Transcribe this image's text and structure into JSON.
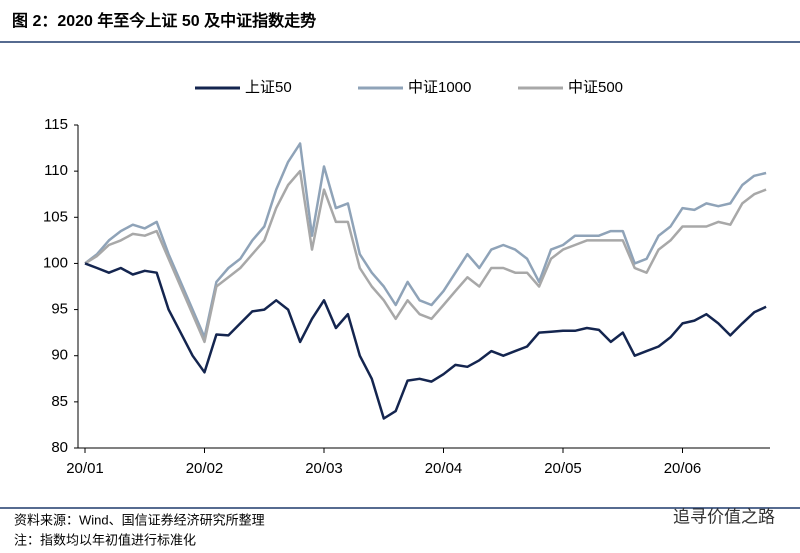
{
  "chart_data": {
    "type": "line",
    "title": "图 2：2020 年至今上证 50 及中证指数走势",
    "source": "资料来源：Wind、国信证券经济研究所整理",
    "note": "注：指数均以年初值进行标准化",
    "watermark": "追寻价值之路",
    "categories": [
      "20/01",
      null,
      null,
      null,
      null,
      null,
      null,
      null,
      null,
      null,
      "20/02",
      null,
      null,
      null,
      null,
      null,
      null,
      null,
      null,
      null,
      "20/03",
      null,
      null,
      null,
      null,
      null,
      null,
      null,
      null,
      null,
      "20/04",
      null,
      null,
      null,
      null,
      null,
      null,
      null,
      null,
      null,
      "20/05",
      null,
      null,
      null,
      null,
      null,
      null,
      null,
      null,
      null,
      "20/06",
      null,
      null,
      null,
      null,
      null,
      null,
      null
    ],
    "series": [
      {
        "name": "上证50",
        "color": "#14254f",
        "values": [
          100,
          99.5,
          99,
          99.5,
          98.8,
          99.2,
          99,
          95,
          92.5,
          90,
          88.2,
          92.3,
          92.2,
          93.5,
          94.8,
          95,
          96,
          95,
          91.5,
          94,
          96,
          93,
          94.5,
          90,
          87.5,
          83.2,
          84,
          87.3,
          87.5,
          87.2,
          88,
          89,
          88.8,
          89.5,
          90.5,
          90,
          90.5,
          91,
          92.5,
          92.6,
          92.7,
          92.7,
          93,
          92.8,
          91.5,
          92.5,
          90,
          90.5,
          91,
          92,
          93.5,
          93.8,
          94.5,
          93.5,
          92.2,
          93.5,
          94.7,
          95.3
        ]
      },
      {
        "name": "中证1000",
        "color": "#8fa3b8",
        "values": [
          100,
          101,
          102.5,
          103.5,
          104.2,
          103.8,
          104.5,
          101,
          98,
          95,
          92,
          98,
          99.5,
          100.5,
          102.5,
          104,
          108,
          111,
          113,
          103,
          110.5,
          106,
          106.5,
          101,
          99,
          97.5,
          95.5,
          98,
          96,
          95.5,
          97,
          99,
          101,
          99.5,
          101.5,
          102,
          101.5,
          100.5,
          98,
          101.5,
          102,
          103,
          103,
          103,
          103.5,
          103.5,
          100,
          100.5,
          103,
          104,
          106,
          105.8,
          106.5,
          106.2,
          106.5,
          108.5,
          109.5,
          109.8
        ]
      },
      {
        "name": "中证500",
        "color": "#a8a8a8",
        "values": [
          100,
          100.8,
          102,
          102.5,
          103.2,
          103,
          103.5,
          100.5,
          97.5,
          94.5,
          91.5,
          97.5,
          98.5,
          99.5,
          101,
          102.5,
          106,
          108.5,
          110,
          101.5,
          108,
          104.5,
          104.5,
          99.5,
          97.5,
          96,
          94,
          96,
          94.5,
          94,
          95.5,
          97,
          98.5,
          97.5,
          99.5,
          99.5,
          99,
          99,
          97.5,
          100.5,
          101.5,
          102,
          102.5,
          102.5,
          102.5,
          102.5,
          99.5,
          99,
          101.5,
          102.5,
          104,
          104,
          104,
          104.5,
          104.2,
          106.5,
          107.5,
          108
        ]
      }
    ],
    "ylim": [
      80,
      115
    ],
    "yticks": [
      80,
      85,
      90,
      95,
      100,
      105,
      110,
      115
    ],
    "legend": "top",
    "grid": false
  }
}
